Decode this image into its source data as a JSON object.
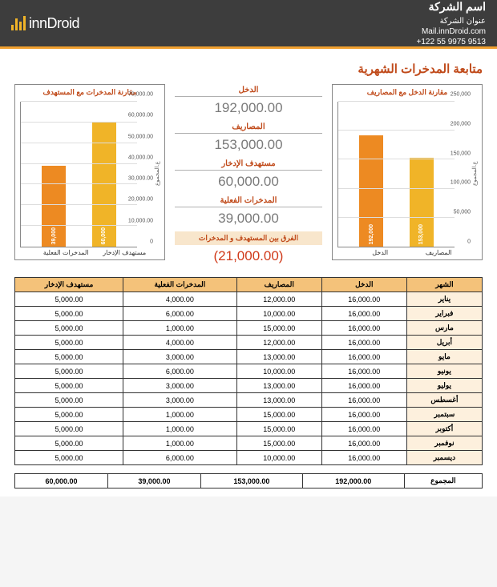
{
  "header": {
    "logo_text": "innDroid",
    "company_name": "اسم الشركة",
    "company_address": "عنوان الشركة",
    "company_mail": "Mail.innDroid.com",
    "company_phone": "+122 55 9975 9513"
  },
  "page_title": "متابعة المدخرات الشهرية",
  "colors": {
    "header_bg": "#3d3d3d",
    "accent": "#f0a030",
    "title": "#c04a1a",
    "bar_orange": "#ed8a22",
    "bar_yellow": "#f0b428",
    "negative": "#d03a1a"
  },
  "summary": {
    "income_label": "الدخل",
    "income_value": "192,000.00",
    "expense_label": "المصاريف",
    "expense_value": "153,000.00",
    "target_label": "مستهدف الإدخار",
    "target_value": "60,000.00",
    "actual_label": "المدخرات الفعلية",
    "actual_value": "39,000.00",
    "diff_label": "الفرق بين المستهدف و المدخرات",
    "diff_value": "(21,000.00)"
  },
  "chart1": {
    "title": "مقارنة الدخل مع المصاريف",
    "ylabel": "ع.المجموع",
    "ymax": 250000,
    "ytick_step": 50000,
    "yticks": [
      "0",
      "50,000",
      "100,000",
      "150,000",
      "200,000",
      "250,000"
    ],
    "bars": [
      {
        "label": "الدخل",
        "value": 192000,
        "value_text": "192,000",
        "color": "#ed8a22"
      },
      {
        "label": "المصاريف",
        "value": 153000,
        "value_text": "153,000",
        "color": "#f0b428"
      }
    ]
  },
  "chart2": {
    "title": "مقارنة المدخرات مع المستهدف",
    "ylabel": "ع.المجموع",
    "ymax": 70000,
    "ytick_step": 10000,
    "yticks": [
      "0",
      "10,000.00",
      "20,000.00",
      "30,000.00",
      "40,000.00",
      "50,000.00",
      "60,000.00",
      "70,000.00"
    ],
    "bars": [
      {
        "label": "المدخرات الفعلية",
        "value": 39000,
        "value_text": "39,000",
        "color": "#ed8a22"
      },
      {
        "label": "مستهدف الإدخار",
        "value": 60000,
        "value_text": "60,000",
        "color": "#f0b428"
      }
    ]
  },
  "table": {
    "headers": [
      "مستهدف الإدخار",
      "المدخرات الفعلية",
      "المصاريف",
      "الدخل",
      "الشهر"
    ],
    "rows": [
      [
        "5,000.00",
        "4,000.00",
        "12,000.00",
        "16,000.00",
        "يناير"
      ],
      [
        "5,000.00",
        "6,000.00",
        "10,000.00",
        "16,000.00",
        "فبراير"
      ],
      [
        "5,000.00",
        "1,000.00",
        "15,000.00",
        "16,000.00",
        "مارس"
      ],
      [
        "5,000.00",
        "4,000.00",
        "12,000.00",
        "16,000.00",
        "أبريل"
      ],
      [
        "5,000.00",
        "3,000.00",
        "13,000.00",
        "16,000.00",
        "مايو"
      ],
      [
        "5,000.00",
        "6,000.00",
        "10,000.00",
        "16,000.00",
        "يونيو"
      ],
      [
        "5,000.00",
        "3,000.00",
        "13,000.00",
        "16,000.00",
        "يوليو"
      ],
      [
        "5,000.00",
        "3,000.00",
        "13,000.00",
        "16,000.00",
        "أغسطس"
      ],
      [
        "5,000.00",
        "1,000.00",
        "15,000.00",
        "16,000.00",
        "سبتمبر"
      ],
      [
        "5,000.00",
        "1,000.00",
        "15,000.00",
        "16,000.00",
        "أكتوبر"
      ],
      [
        "5,000.00",
        "1,000.00",
        "15,000.00",
        "16,000.00",
        "نوفمبر"
      ],
      [
        "5,000.00",
        "6,000.00",
        "10,000.00",
        "16,000.00",
        "ديسمبر"
      ]
    ],
    "totals_label": "المجموع",
    "totals": [
      "60,000.00",
      "39,000.00",
      "153,000.00",
      "192,000.00"
    ]
  }
}
